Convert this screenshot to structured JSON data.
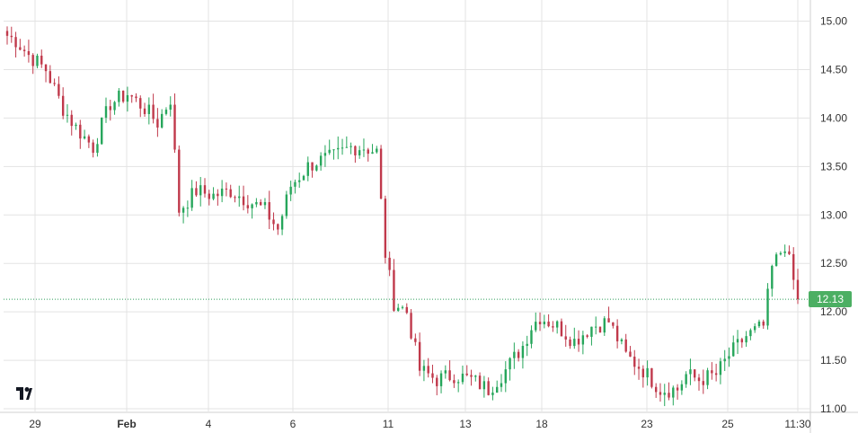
{
  "chart_data": {
    "type": "ohlc",
    "title": "",
    "xlabel": "",
    "ylabel": "",
    "ylim": [
      11.0,
      15.0
    ],
    "y_ticks": [
      "15.00",
      "14.50",
      "14.00",
      "13.50",
      "13.00",
      "12.50",
      "12.00",
      "11.50",
      "11.00"
    ],
    "x_ticks": [
      "29",
      "Feb",
      "4",
      "6",
      "11",
      "13",
      "18",
      "23",
      "25",
      "11:30"
    ],
    "last_price": "12.13",
    "last_price_value": 12.13,
    "grid": true,
    "y_axis_side": "right",
    "colors": {
      "up": "#26a65b",
      "down": "#c0394b",
      "grid": "#e3e3e3",
      "axis_text": "#333333",
      "price_line": "#2e9e5b",
      "badge": "#4caf63"
    },
    "anchor_series": {
      "name": "",
      "x_index": [
        0,
        2,
        5,
        9,
        13,
        16,
        20,
        24,
        28,
        32,
        35,
        38,
        40,
        44,
        48,
        52,
        56,
        60,
        63,
        66,
        70,
        72,
        76,
        80,
        83,
        86,
        88,
        90,
        93,
        96,
        100,
        104,
        108,
        112,
        116,
        120,
        122,
        124,
        128,
        132,
        136,
        140,
        144,
        148,
        152,
        156,
        158,
        161,
        165,
        168,
        172,
        176,
        178,
        181,
        184
      ],
      "close": [
        14.85,
        14.8,
        14.65,
        14.5,
        14.1,
        13.9,
        13.7,
        14.15,
        14.25,
        14.1,
        13.95,
        14.2,
        13.05,
        13.25,
        13.2,
        13.25,
        13.15,
        13.05,
        12.85,
        13.3,
        13.5,
        13.55,
        13.6,
        13.7,
        13.7,
        13.65,
        12.6,
        12.1,
        12.0,
        11.4,
        11.3,
        11.35,
        11.3,
        11.2,
        11.4,
        11.65,
        11.85,
        11.95,
        11.85,
        11.7,
        11.85,
        11.9,
        11.55,
        11.4,
        11.2,
        11.2,
        11.35,
        11.3,
        11.35,
        11.55,
        11.75,
        11.85,
        12.45,
        12.7,
        12.13
      ]
    }
  }
}
